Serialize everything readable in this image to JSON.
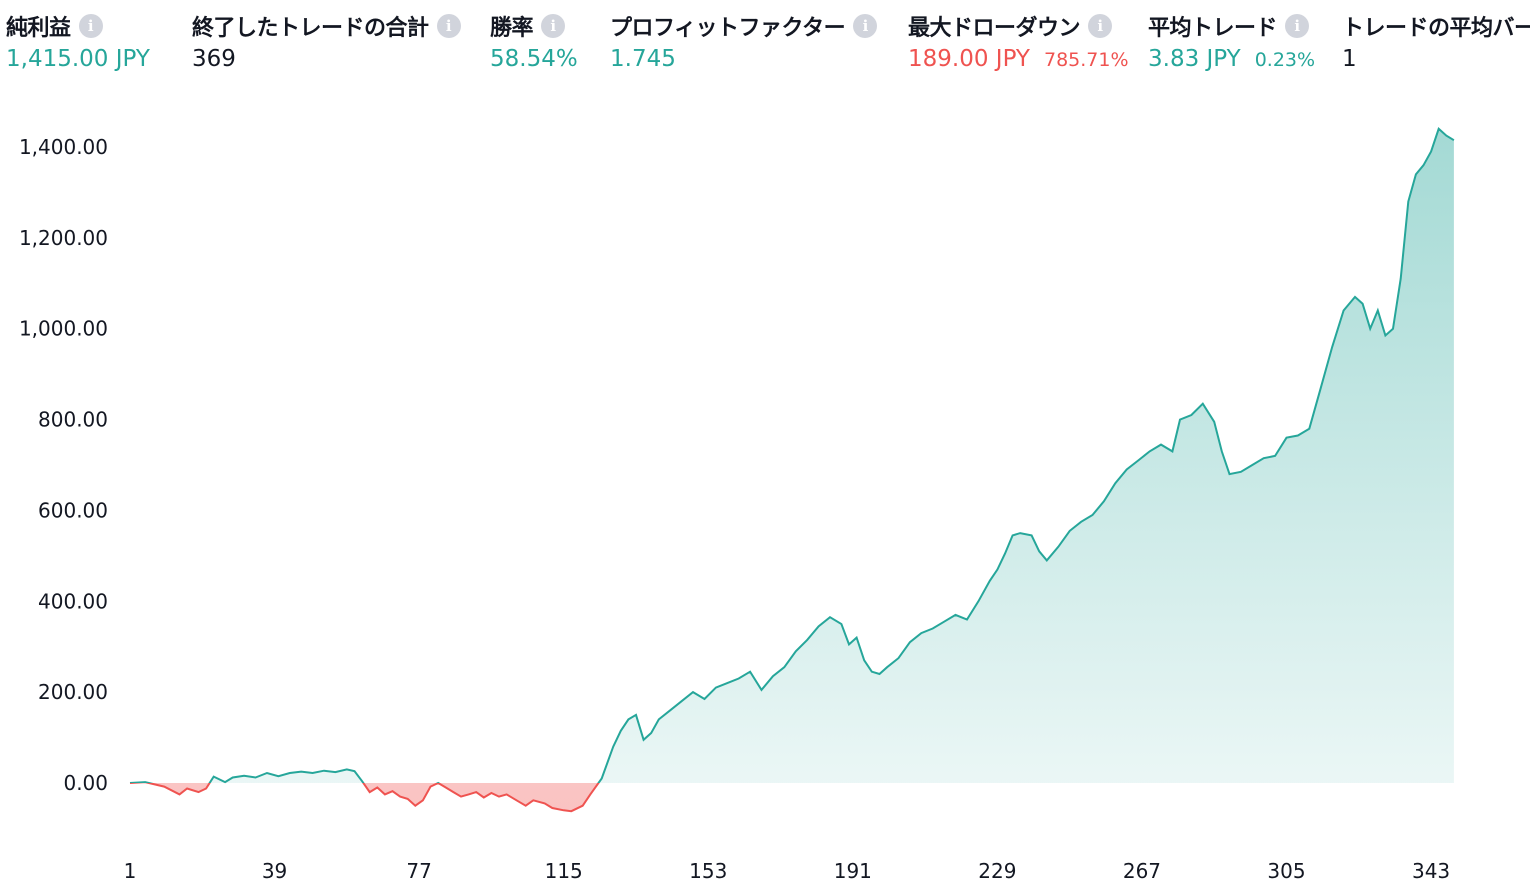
{
  "stats": [
    {
      "label": "純利益",
      "value": "1,415.00 JPY",
      "sub": "",
      "value_color": "#26a69a",
      "sub_color": ""
    },
    {
      "label": "終了したトレードの合計",
      "value": "369",
      "sub": "",
      "value_color": "#131722",
      "sub_color": ""
    },
    {
      "label": "勝率",
      "value": "58.54%",
      "sub": "",
      "value_color": "#26a69a",
      "sub_color": ""
    },
    {
      "label": "プロフィットファクター",
      "value": "1.745",
      "sub": "",
      "value_color": "#26a69a",
      "sub_color": ""
    },
    {
      "label": "最大ドローダウン",
      "value": "189.00 JPY",
      "sub": "785.71%",
      "value_color": "#ef5350",
      "sub_color": "#ef5350"
    },
    {
      "label": "平均トレード",
      "value": "3.83 JPY",
      "sub": "0.23%",
      "value_color": "#26a69a",
      "sub_color": "#26a69a"
    },
    {
      "label": "トレードの平均バー",
      "value": "1",
      "sub": "",
      "value_color": "#131722",
      "sub_color": ""
    }
  ],
  "info_icon": "info-circle-icon",
  "colors": {
    "positive": "#26a69a",
    "negative": "#ef5350",
    "positive_fill": "#26a69a",
    "negative_fill": "#ef5350"
  },
  "chart_data": {
    "type": "area",
    "title": "",
    "xlabel": "",
    "ylabel": "",
    "x_ticks": [
      "1",
      "39",
      "77",
      "115",
      "153",
      "191",
      "229",
      "267",
      "305",
      "343"
    ],
    "x_tick_values": [
      1,
      39,
      77,
      115,
      153,
      191,
      229,
      267,
      305,
      343
    ],
    "y_ticks": [
      "0.00",
      "200.00",
      "400.00",
      "600.00",
      "800.00",
      "1,000.00",
      "1,200.00",
      "1,400.00"
    ],
    "y_tick_values": [
      0,
      200,
      400,
      600,
      800,
      1000,
      1200,
      1400
    ],
    "xlim": [
      1,
      369
    ],
    "ylim": [
      -85,
      1450
    ],
    "grid": false,
    "baseline": 0,
    "series": [
      {
        "values": [
          [
            1,
            0
          ],
          [
            5,
            2
          ],
          [
            10,
            -8
          ],
          [
            14,
            -25
          ],
          [
            16,
            -12
          ],
          [
            19,
            -20
          ],
          [
            21,
            -12
          ],
          [
            23,
            14
          ],
          [
            26,
            2
          ],
          [
            28,
            12
          ],
          [
            31,
            16
          ],
          [
            34,
            12
          ],
          [
            37,
            22
          ],
          [
            40,
            15
          ],
          [
            43,
            22
          ],
          [
            46,
            25
          ],
          [
            49,
            22
          ],
          [
            52,
            27
          ],
          [
            55,
            24
          ],
          [
            58,
            30
          ],
          [
            60,
            26
          ],
          [
            62,
            4
          ],
          [
            64,
            -20
          ],
          [
            66,
            -10
          ],
          [
            68,
            -25
          ],
          [
            70,
            -18
          ],
          [
            72,
            -30
          ],
          [
            74,
            -35
          ],
          [
            76,
            -50
          ],
          [
            78,
            -38
          ],
          [
            80,
            -8
          ],
          [
            82,
            0
          ],
          [
            84,
            -10
          ],
          [
            86,
            -20
          ],
          [
            88,
            -30
          ],
          [
            90,
            -25
          ],
          [
            92,
            -20
          ],
          [
            94,
            -32
          ],
          [
            96,
            -22
          ],
          [
            98,
            -30
          ],
          [
            100,
            -25
          ],
          [
            103,
            -40
          ],
          [
            105,
            -50
          ],
          [
            107,
            -38
          ],
          [
            110,
            -45
          ],
          [
            112,
            -55
          ],
          [
            115,
            -60
          ],
          [
            117,
            -62
          ],
          [
            120,
            -50
          ],
          [
            122,
            -25
          ],
          [
            125,
            10
          ],
          [
            128,
            80
          ],
          [
            130,
            115
          ],
          [
            132,
            140
          ],
          [
            134,
            150
          ],
          [
            136,
            95
          ],
          [
            138,
            110
          ],
          [
            140,
            140
          ],
          [
            143,
            160
          ],
          [
            146,
            180
          ],
          [
            149,
            200
          ],
          [
            152,
            185
          ],
          [
            155,
            210
          ],
          [
            158,
            220
          ],
          [
            161,
            230
          ],
          [
            164,
            245
          ],
          [
            167,
            205
          ],
          [
            170,
            235
          ],
          [
            173,
            255
          ],
          [
            176,
            290
          ],
          [
            179,
            315
          ],
          [
            182,
            345
          ],
          [
            185,
            365
          ],
          [
            188,
            350
          ],
          [
            190,
            305
          ],
          [
            192,
            320
          ],
          [
            194,
            270
          ],
          [
            196,
            245
          ],
          [
            198,
            240
          ],
          [
            200,
            255
          ],
          [
            203,
            275
          ],
          [
            206,
            310
          ],
          [
            209,
            330
          ],
          [
            212,
            340
          ],
          [
            215,
            355
          ],
          [
            218,
            370
          ],
          [
            221,
            360
          ],
          [
            224,
            400
          ],
          [
            227,
            445
          ],
          [
            229,
            470
          ],
          [
            231,
            505
          ],
          [
            233,
            545
          ],
          [
            235,
            550
          ],
          [
            238,
            545
          ],
          [
            240,
            510
          ],
          [
            242,
            490
          ],
          [
            245,
            520
          ],
          [
            248,
            555
          ],
          [
            251,
            575
          ],
          [
            254,
            590
          ],
          [
            257,
            620
          ],
          [
            260,
            660
          ],
          [
            263,
            690
          ],
          [
            266,
            710
          ],
          [
            269,
            730
          ],
          [
            272,
            745
          ],
          [
            275,
            730
          ],
          [
            277,
            800
          ],
          [
            280,
            810
          ],
          [
            283,
            835
          ],
          [
            286,
            795
          ],
          [
            288,
            730
          ],
          [
            290,
            680
          ],
          [
            293,
            685
          ],
          [
            296,
            700
          ],
          [
            299,
            715
          ],
          [
            302,
            720
          ],
          [
            305,
            760
          ],
          [
            308,
            765
          ],
          [
            311,
            780
          ],
          [
            314,
            870
          ],
          [
            317,
            960
          ],
          [
            320,
            1040
          ],
          [
            323,
            1070
          ],
          [
            325,
            1055
          ],
          [
            327,
            1000
          ],
          [
            329,
            1040
          ],
          [
            331,
            985
          ],
          [
            333,
            1000
          ],
          [
            335,
            1110
          ],
          [
            337,
            1280
          ],
          [
            339,
            1340
          ],
          [
            341,
            1360
          ],
          [
            343,
            1390
          ],
          [
            345,
            1440
          ],
          [
            347,
            1425
          ],
          [
            349,
            1415
          ]
        ]
      }
    ]
  }
}
